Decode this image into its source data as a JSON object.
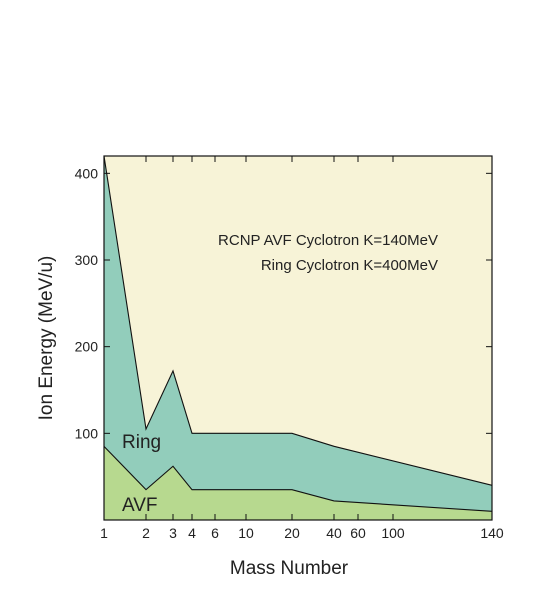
{
  "chart_data": {
    "type": "area",
    "x_ticks": [
      1,
      2,
      3,
      4,
      6,
      10,
      20,
      40,
      60,
      100,
      140
    ],
    "y_ticks": [
      100,
      200,
      300,
      400
    ],
    "ylim": [
      0,
      420
    ],
    "xlabel": "Mass Number",
    "ylabel": "Ion Energy (MeV/u)",
    "annotations": [
      "RCNP AVF Cyclotron K=140MeV",
      "Ring Cyclotron K=400MeV"
    ],
    "series": [
      {
        "name": "Ring",
        "color": "#92cdbb",
        "points": [
          [
            1,
            420
          ],
          [
            2,
            105
          ],
          [
            3,
            172
          ],
          [
            4,
            100
          ],
          [
            20,
            100
          ],
          [
            40,
            85
          ],
          [
            140,
            40
          ]
        ]
      },
      {
        "name": "AVF",
        "color": "#b7d98f",
        "points": [
          [
            1,
            85
          ],
          [
            2,
            35
          ],
          [
            3,
            62
          ],
          [
            4,
            35
          ],
          [
            20,
            35
          ],
          [
            40,
            22
          ],
          [
            140,
            10
          ]
        ]
      }
    ],
    "background_color": "#f7f3d7",
    "grid": false
  }
}
